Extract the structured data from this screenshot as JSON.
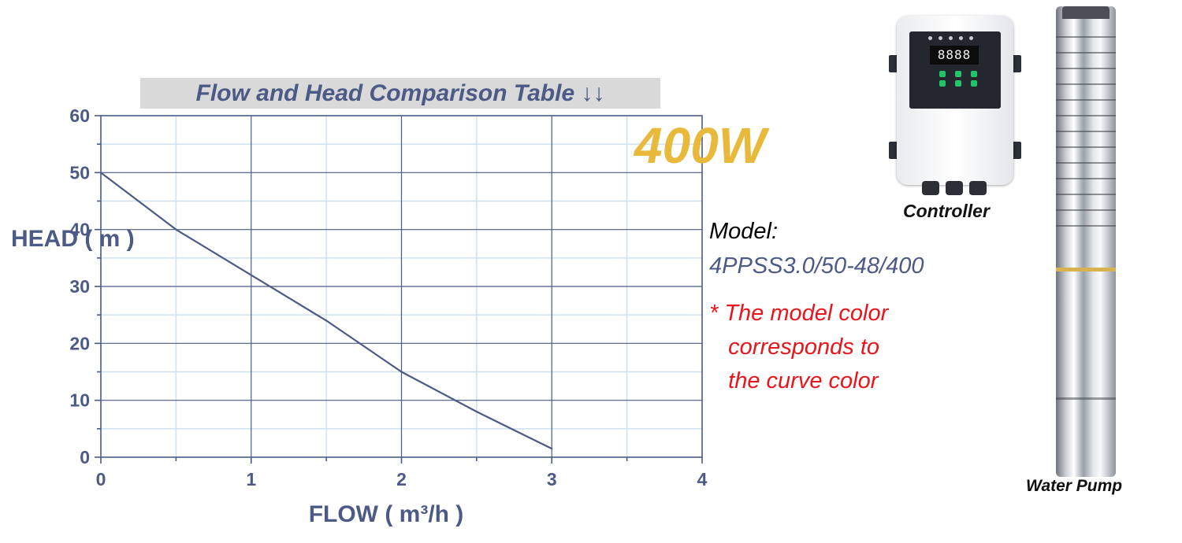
{
  "chart_data": {
    "type": "line",
    "title": "Flow and Head Comparison Table ↓↓",
    "xlabel": "FLOW ( m³/h )",
    "ylabel": "HEAD ( m )",
    "xlim": [
      0,
      4
    ],
    "ylim": [
      0,
      60
    ],
    "x_ticks": [
      "0",
      "1",
      "2",
      "3",
      "4"
    ],
    "y_ticks": [
      "0",
      "10",
      "20",
      "30",
      "40",
      "50",
      "60"
    ],
    "grid": true,
    "series": [
      {
        "x": [
          0,
          0.5,
          1.0,
          1.5,
          2.0,
          2.5,
          3.0
        ],
        "y": [
          50,
          40,
          32,
          24,
          15,
          8,
          1.5
        ]
      }
    ]
  },
  "colors": {
    "axis": "#4b5a86",
    "curve": "#4b5a86",
    "major_grid": "#4b5a86",
    "minor_grid": "#cfe0ee",
    "power": "#e8b93b",
    "note": "#e8161c"
  },
  "annotations": {
    "power": "400W",
    "model_label": "Model:",
    "model_value": "4PPSS3.0/50-48/400",
    "note": "* The model color\n   corresponds to\n   the curve color"
  },
  "products": {
    "controller": {
      "display": "8888",
      "caption": "Controller"
    },
    "pump": {
      "caption": "Water Pump"
    }
  }
}
